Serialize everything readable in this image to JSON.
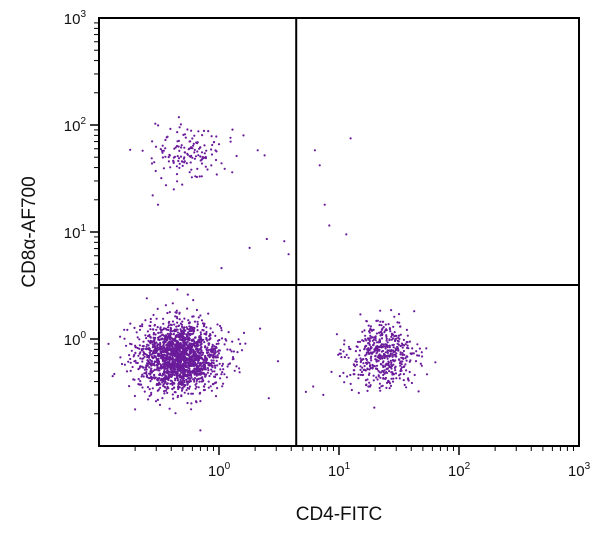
{
  "chart_data": {
    "type": "scatter",
    "title": "",
    "xlabel": "CD4-FITC",
    "ylabel": "CD8α-AF700",
    "xscale": "log",
    "yscale": "log",
    "xlim": [
      0.1,
      1000
    ],
    "ylim": [
      0.1,
      1000
    ],
    "grid": false,
    "xticks": [
      {
        "value": 1,
        "base": "10",
        "exp": "0"
      },
      {
        "value": 10,
        "base": "10",
        "exp": "1"
      },
      {
        "value": 100,
        "base": "10",
        "exp": "2"
      },
      {
        "value": 1000,
        "base": "10",
        "exp": "3"
      }
    ],
    "yticks": [
      {
        "value": 1,
        "base": "10",
        "exp": "0"
      },
      {
        "value": 10,
        "base": "10",
        "exp": "1"
      },
      {
        "value": 100,
        "base": "10",
        "exp": "2"
      },
      {
        "value": 1000,
        "base": "10",
        "exp": "3"
      }
    ],
    "quadrant_gates": {
      "x": 4.4,
      "y": 3.2
    },
    "point_color": "#6a1b9a",
    "populations": [
      {
        "label": "CD4-CD8α-",
        "center": [
          0.47,
          0.68
        ],
        "spread_log10": [
          0.17,
          0.16
        ],
        "count": 1900
      },
      {
        "label": "CD4+CD8α-",
        "center": [
          23,
          0.7
        ],
        "spread_log10": [
          0.14,
          0.15
        ],
        "count": 520
      },
      {
        "label": "CD4-CD8α+",
        "center": [
          0.57,
          57
        ],
        "spread_log10": [
          0.15,
          0.13
        ],
        "count": 150
      }
    ],
    "outliers": [
      [
        0.75,
        88
      ],
      [
        0.95,
        78
      ],
      [
        1.6,
        80
      ],
      [
        2.1,
        58
      ],
      [
        2.4,
        52
      ],
      [
        1.25,
        70
      ],
      [
        6.3,
        58
      ],
      [
        6.9,
        42
      ],
      [
        7.6,
        18
      ],
      [
        12.5,
        75
      ],
      [
        8.3,
        11.5
      ],
      [
        11.5,
        9.5
      ],
      [
        2.5,
        8.6
      ],
      [
        1.8,
        7.1
      ],
      [
        3.5,
        8.2
      ],
      [
        3.8,
        6.2
      ],
      [
        1.05,
        4.6
      ],
      [
        0.31,
        18
      ],
      [
        0.42,
        25
      ],
      [
        0.28,
        22
      ],
      [
        1.2,
        0.58
      ],
      [
        2.2,
        1.25
      ],
      [
        2.6,
        0.28
      ],
      [
        5.3,
        0.32
      ],
      [
        3.1,
        0.62
      ],
      [
        0.12,
        0.9
      ],
      [
        0.15,
        1.05
      ],
      [
        0.13,
        0.45
      ],
      [
        0.2,
        0.22
      ],
      [
        0.7,
        0.14
      ],
      [
        1.5,
        0.9
      ],
      [
        0.25,
        2.4
      ],
      [
        0.45,
        2.9
      ],
      [
        0.55,
        2.6
      ],
      [
        6.1,
        0.36
      ],
      [
        7.4,
        0.3
      ]
    ]
  }
}
